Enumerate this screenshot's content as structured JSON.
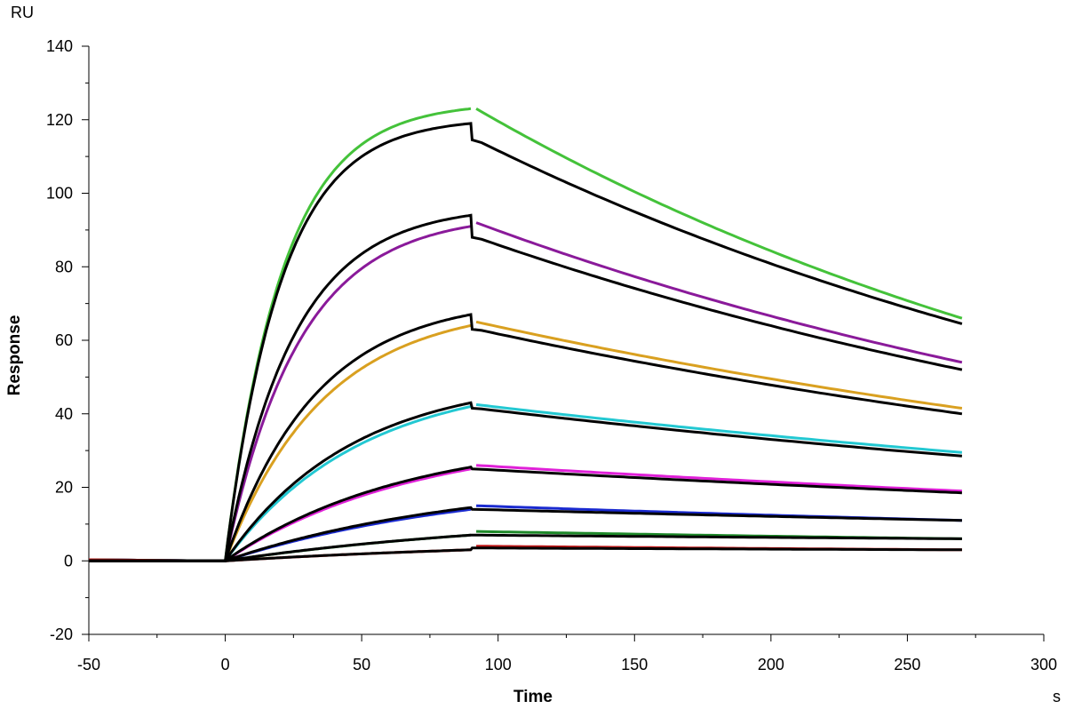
{
  "chart_data": {
    "type": "line",
    "title": "",
    "xlabel": "Time",
    "ylabel": "Response",
    "x_unit": "s",
    "y_unit": "RU",
    "xlim": [
      -50,
      300
    ],
    "ylim": [
      -20,
      140
    ],
    "x_ticks": [
      -50,
      0,
      50,
      100,
      150,
      200,
      250,
      300
    ],
    "y_ticks": [
      -20,
      0,
      20,
      40,
      60,
      80,
      100,
      120,
      140
    ],
    "grid": false,
    "legend": "none",
    "association_end": 90,
    "dissociation_start": 92,
    "end_time": 270,
    "measured_series": [
      {
        "color": "#44c23a",
        "peak": 123,
        "start": 123,
        "end": 66
      },
      {
        "color": "#8a1a9a",
        "peak": 91,
        "start": 92,
        "end": 54
      },
      {
        "color": "#d9a020",
        "peak": 64,
        "start": 65,
        "end": 41.5
      },
      {
        "color": "#23c8d2",
        "peak": 42,
        "start": 42.5,
        "end": 29.5
      },
      {
        "color": "#e020d8",
        "peak": 25,
        "start": 26,
        "end": 19
      },
      {
        "color": "#1a2ad0",
        "peak": 14,
        "start": 15,
        "end": 11
      },
      {
        "color": "#1f8a2a",
        "peak": 7,
        "start": 8,
        "end": 6
      },
      {
        "color": "#c01818",
        "peak": 3,
        "start": 4,
        "end": 3
      }
    ],
    "fit_series": [
      {
        "color": "#000000",
        "peak": 119,
        "start": 114.5,
        "end": 64.5
      },
      {
        "color": "#000000",
        "peak": 94,
        "start": 88,
        "end": 52
      },
      {
        "color": "#000000",
        "peak": 67,
        "start": 63,
        "end": 40
      },
      {
        "color": "#000000",
        "peak": 43,
        "start": 41.5,
        "end": 28.5
      },
      {
        "color": "#000000",
        "peak": 25.5,
        "start": 25,
        "end": 18.5
      },
      {
        "color": "#000000",
        "peak": 14.5,
        "start": 14,
        "end": 11
      },
      {
        "color": "#000000",
        "peak": 7,
        "start": 7,
        "end": 6
      },
      {
        "color": "#000000",
        "peak": 3,
        "start": 3.5,
        "end": 3
      }
    ]
  }
}
